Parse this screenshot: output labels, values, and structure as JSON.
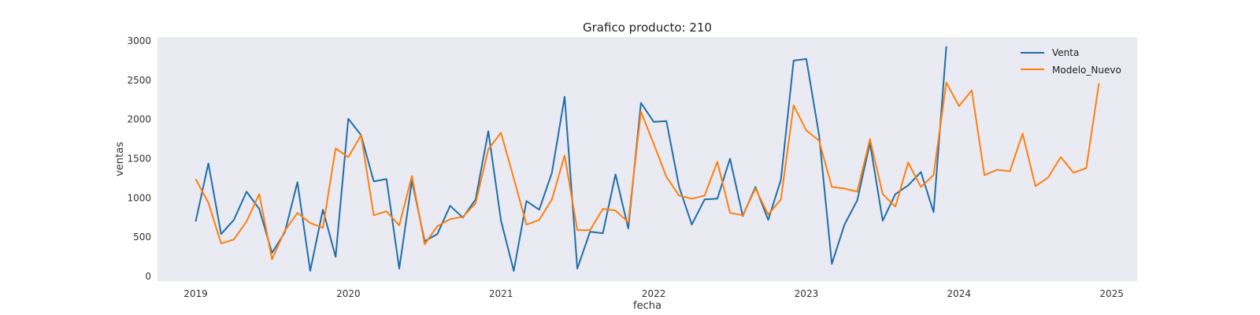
{
  "chart_data": {
    "type": "line",
    "title": "Grafico producto: 210",
    "xlabel": "fecha",
    "ylabel": "ventas",
    "ylim": [
      -60,
      3050
    ],
    "xlim": [
      "2018-10-01",
      "2025-03-01"
    ],
    "y_ticks": [
      0,
      500,
      1000,
      1500,
      2000,
      2500,
      3000
    ],
    "x_ticks": [
      "2019",
      "2020",
      "2021",
      "2022",
      "2023",
      "2024",
      "2025"
    ],
    "grid": false,
    "background": "#eaeaf2",
    "legend_position": "top-right",
    "start": "2019-01",
    "series": [
      {
        "name": "Venta",
        "color": "#1f6fa8",
        "values": [
          700,
          1440,
          540,
          720,
          1080,
          860,
          300,
          560,
          1200,
          70,
          850,
          250,
          2010,
          1800,
          1210,
          1240,
          100,
          1220,
          450,
          540,
          900,
          750,
          980,
          1850,
          710,
          70,
          960,
          850,
          1320,
          2290,
          100,
          570,
          550,
          1300,
          610,
          2210,
          1970,
          1980,
          1140,
          660,
          980,
          990,
          1500,
          770,
          1140,
          720,
          1230,
          2750,
          2770,
          1800,
          160,
          660,
          970,
          1700,
          710,
          1050,
          1160,
          1330,
          820,
          2930
        ]
      },
      {
        "name": "Modelo_Nuevo",
        "color": "#ff7f0e",
        "values": [
          1240,
          940,
          420,
          470,
          700,
          1050,
          220,
          580,
          810,
          680,
          620,
          1630,
          1520,
          1800,
          780,
          830,
          650,
          1280,
          410,
          640,
          730,
          760,
          930,
          1620,
          1830,
          1250,
          660,
          720,
          980,
          1540,
          590,
          590,
          860,
          840,
          690,
          2100,
          1690,
          1270,
          1030,
          990,
          1030,
          1460,
          810,
          780,
          1120,
          790,
          980,
          2180,
          1860,
          1730,
          1140,
          1120,
          1080,
          1750,
          1050,
          890,
          1450,
          1140,
          1290,
          2470,
          2170,
          2370,
          1290,
          1360,
          1340,
          1820,
          1150,
          1260,
          1520,
          1320,
          1380,
          2460
        ]
      }
    ]
  }
}
